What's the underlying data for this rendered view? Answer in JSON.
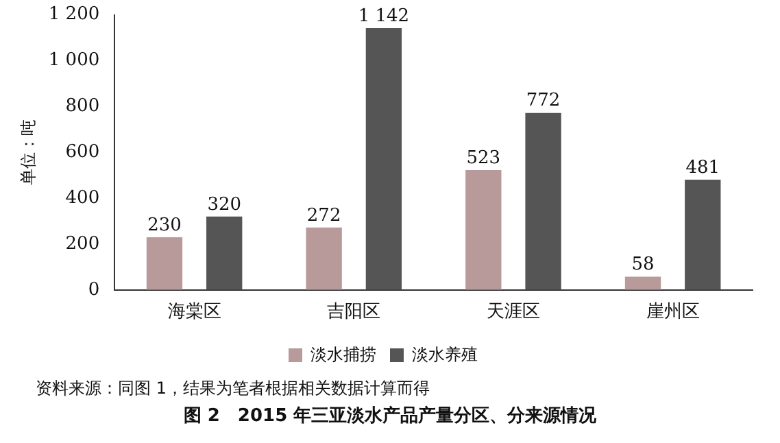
{
  "chart_data": {
    "type": "bar",
    "title": "图 2　2015 年三亚淡水产品产量分区、分来源情况",
    "ylabel": "单位：吨",
    "annotations": [
      "资料来源：同图 1，结果为笔者根据相关数据计算而得"
    ],
    "categories": [
      "海棠区",
      "吉阳区",
      "天涯区",
      "崖州区"
    ],
    "series": [
      {
        "name": "淡水捕捞",
        "color": "#b89a9a",
        "values": [
          230,
          272,
          523,
          58
        ]
      },
      {
        "name": "淡水养殖",
        "color": "#555555",
        "values": [
          320,
          1142,
          772,
          481
        ]
      }
    ],
    "ylim": [
      0,
      1200
    ],
    "yticks": [
      0,
      200,
      400,
      600,
      800,
      {
        "value": 1000,
        "label": "1 000"
      },
      {
        "value": 1200,
        "label": "1 200"
      }
    ],
    "grid": false,
    "legend": "bottom",
    "data_labels": true
  }
}
